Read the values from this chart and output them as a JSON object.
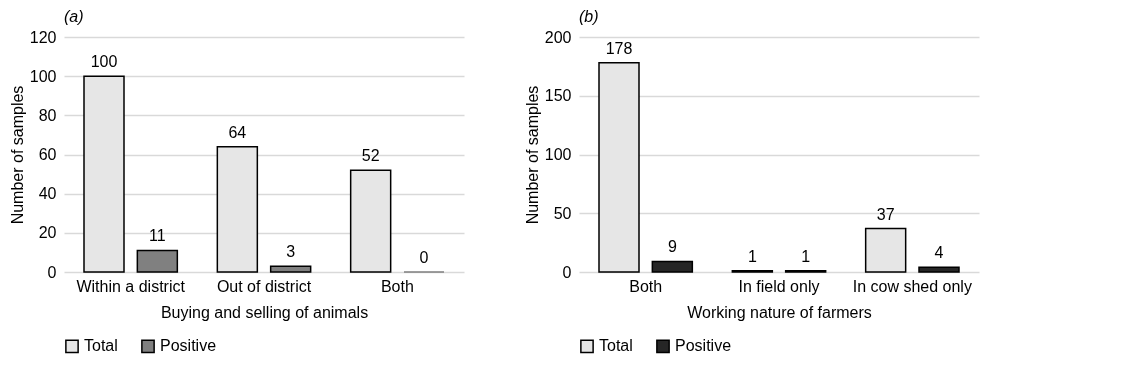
{
  "chart_data": [
    {
      "type": "bar",
      "title": "(a)",
      "xlabel": "Buying and selling of animals",
      "ylabel": "Number  of samples",
      "categories": [
        "Within a district",
        "Out of district",
        "Both"
      ],
      "series": [
        {
          "name": "Total",
          "color": "#e6e6e6",
          "values": [
            100,
            64,
            52
          ]
        },
        {
          "name": "Positive",
          "color": "#808080",
          "values": [
            11,
            3,
            0
          ]
        }
      ],
      "ylim": [
        0,
        120
      ],
      "yticks": [
        0,
        20,
        40,
        60,
        80,
        100,
        120
      ],
      "grid": "y",
      "legend": "bottom",
      "data_labels": true
    },
    {
      "type": "bar",
      "title": "(b)",
      "xlabel": "Working nature of farmers",
      "ylabel": "Number of samples",
      "categories": [
        "Both",
        "In field only",
        "In cow shed only"
      ],
      "series": [
        {
          "name": "Total",
          "color": "#e6e6e6",
          "values": [
            178,
            1,
            37
          ]
        },
        {
          "name": "Positive",
          "color": "#262626",
          "values": [
            9,
            1,
            4
          ]
        }
      ],
      "ylim": [
        0,
        200
      ],
      "yticks": [
        0,
        50,
        100,
        150,
        200
      ],
      "grid": "y",
      "legend": "bottom",
      "data_labels": true
    }
  ]
}
